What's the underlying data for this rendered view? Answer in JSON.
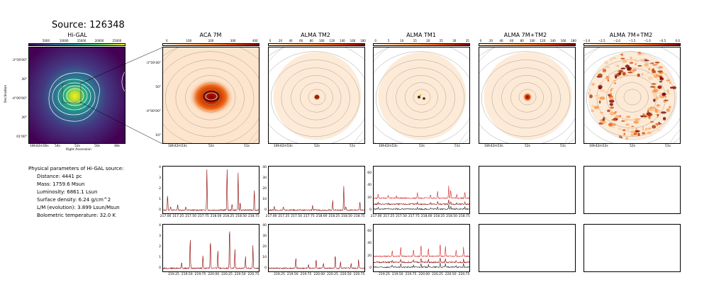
{
  "title": "Source: 126348",
  "panels": [
    {
      "id": "higal",
      "title": "Hi-GAL",
      "cbar_ticks": [
        "5000",
        "10000",
        "15000",
        "20000",
        "25000"
      ],
      "cbar_colors": [
        "#440154",
        "#3b528b",
        "#21908d",
        "#5dc963",
        "#fde725"
      ]
    },
    {
      "id": "aca7m",
      "title": "ACA 7M",
      "cbar_ticks": [
        "0",
        "100",
        "200",
        "300",
        "400"
      ],
      "cbar_colors": [
        "#fff5eb",
        "#fdbe85",
        "#fd8d3c",
        "#d94701",
        "#7f0000"
      ]
    },
    {
      "id": "tm2",
      "title": "ALMA TM2",
      "cbar_ticks": [
        "0",
        "20",
        "40",
        "60",
        "80",
        "100",
        "120",
        "140",
        "160",
        "180"
      ],
      "cbar_colors": [
        "#fff5eb",
        "#fdbe85",
        "#fd8d3c",
        "#d94701",
        "#7f0000"
      ]
    },
    {
      "id": "tm1",
      "title": "ALMA TM1",
      "cbar_ticks": [
        "0",
        "5",
        "10",
        "15",
        "20",
        "25",
        "30",
        "35"
      ],
      "cbar_colors": [
        "#fff5eb",
        "#fdbe85",
        "#fd8d3c",
        "#d94701",
        "#7f0000"
      ]
    },
    {
      "id": "7mtm2",
      "title": "ALMA 7M+TM2",
      "cbar_ticks": [
        "0",
        "20",
        "40",
        "60",
        "80",
        "100",
        "120",
        "140",
        "160",
        "180"
      ],
      "cbar_colors": [
        "#fff5eb",
        "#fdbe85",
        "#fd8d3c",
        "#d94701",
        "#7f0000"
      ]
    },
    {
      "id": "7mtm2b",
      "title": "ALMA 7M+TM2",
      "cbar_ticks": [
        "−3.0",
        "−2.5",
        "−2.0",
        "−1.5",
        "−1.0",
        "−0.5",
        "0.0"
      ],
      "cbar_colors": [
        "#fff5eb",
        "#fdbe85",
        "#fd8d3c",
        "#d94701",
        "#7f0000"
      ]
    }
  ],
  "higal_axes": {
    "ylabel": "Declination",
    "xlabel": "Right Ascension",
    "yticks": [
      "-3°59'00\"",
      "30\"",
      "-4°00'00\"",
      "30\"",
      "01'00\""
    ],
    "xticks": [
      "18h42m56s",
      "54s",
      "52s",
      "50s",
      "48s"
    ]
  },
  "zoom_axes": {
    "yticks": [
      "-3°59'40\"",
      "50\"",
      "-4°00'00\"",
      "10\""
    ],
    "xticks": [
      "18h42m53s",
      "52s",
      "51s"
    ]
  },
  "params": {
    "heading": "Physical parameters of Hi-GAL source:",
    "lines": [
      "Distance: 4441 pc",
      "Mass: 1759.6 Msun",
      "Luminosity: 6861.1 Lsun",
      "Surface density: 6.24 g/cm^2",
      "L/M (evolution): 3.899 Lsun/Msun",
      "Bolometric temperature: 32.0 K"
    ]
  },
  "chart_data": [
    {
      "type": "line",
      "panel": "spectrum-aca-band1",
      "x_ticks": [
        "217.00",
        "217.25",
        "217.50",
        "217.75",
        "218.00",
        "218.25",
        "218.50",
        "218.75"
      ],
      "y_ticks": [
        "0",
        "1",
        "2",
        "3",
        "4"
      ],
      "xlim": [
        216.95,
        218.85
      ],
      "ylim": [
        -0.3,
        4.1
      ],
      "peaks": [
        [
          217.04,
          1.5
        ],
        [
          217.1,
          0.4
        ],
        [
          217.24,
          0.5
        ],
        [
          217.4,
          0.3
        ],
        [
          217.82,
          3.9
        ],
        [
          218.22,
          4.0
        ],
        [
          218.32,
          0.6
        ],
        [
          218.44,
          3.5
        ],
        [
          218.48,
          0.8
        ],
        [
          218.76,
          2.0
        ]
      ]
    },
    {
      "type": "line",
      "panel": "spectrum-tm2-band1",
      "x_ticks": [
        "217.00",
        "217.25",
        "217.50",
        "217.75",
        "218.00",
        "218.25",
        "218.50",
        "218.75"
      ],
      "y_ticks": [
        "0",
        "10",
        "20",
        "30",
        "40"
      ],
      "xlim": [
        216.95,
        218.85
      ],
      "ylim": [
        -3,
        41
      ],
      "peaks": [
        [
          217.06,
          4
        ],
        [
          217.24,
          3
        ],
        [
          217.82,
          5
        ],
        [
          218.22,
          9
        ],
        [
          218.44,
          23
        ],
        [
          218.48,
          4
        ],
        [
          218.76,
          8
        ]
      ]
    },
    {
      "type": "line",
      "panel": "spectrum-tm1-band1",
      "x_ticks": [
        "217.00",
        "217.25",
        "217.50",
        "217.75",
        "218.00",
        "218.25",
        "218.50",
        "218.75"
      ],
      "y_ticks": [
        "0",
        "20",
        "40",
        "60"
      ],
      "xlim": [
        216.95,
        218.85
      ],
      "ylim": [
        -5,
        72
      ],
      "baselines": [
        20,
        10,
        2
      ],
      "peaks": [
        [
          217.04,
          28
        ],
        [
          217.24,
          25
        ],
        [
          217.4,
          24
        ],
        [
          217.82,
          30
        ],
        [
          218.08,
          26
        ],
        [
          218.22,
          32
        ],
        [
          218.44,
          40
        ],
        [
          218.48,
          34
        ],
        [
          218.6,
          26
        ],
        [
          218.76,
          30
        ]
      ]
    },
    {
      "type": "line",
      "panel": "spectrum-aca-band2",
      "x_ticks": [
        "219.25",
        "219.50",
        "219.75",
        "220.00",
        "220.25",
        "220.50",
        "220.75"
      ],
      "y_ticks": [
        "0",
        "1",
        "2",
        "3",
        "4"
      ],
      "xlim": [
        219.05,
        220.85
      ],
      "ylim": [
        -0.3,
        4.1
      ],
      "peaks": [
        [
          219.4,
          0.6
        ],
        [
          219.56,
          2.9
        ],
        [
          219.8,
          1.3
        ],
        [
          219.94,
          2.8
        ],
        [
          220.08,
          1.7
        ],
        [
          220.3,
          4.1
        ],
        [
          220.4,
          1.8
        ],
        [
          220.6,
          1.1
        ],
        [
          220.74,
          2.2
        ]
      ]
    },
    {
      "type": "line",
      "panel": "spectrum-tm2-band2",
      "x_ticks": [
        "219.25",
        "219.50",
        "219.75",
        "220.00",
        "220.25",
        "220.50",
        "220.75"
      ],
      "y_ticks": [
        "0",
        "10",
        "20",
        "30",
        "40"
      ],
      "xlim": [
        219.05,
        220.85
      ],
      "ylim": [
        -3,
        41
      ],
      "peaks": [
        [
          219.56,
          10
        ],
        [
          219.8,
          4
        ],
        [
          219.94,
          9
        ],
        [
          220.08,
          5
        ],
        [
          220.3,
          13
        ],
        [
          220.4,
          6
        ],
        [
          220.6,
          5
        ],
        [
          220.74,
          8
        ]
      ]
    },
    {
      "type": "line",
      "panel": "spectrum-tm1-band2",
      "x_ticks": [
        "219.25",
        "219.50",
        "219.75",
        "220.00",
        "220.25",
        "220.50",
        "220.75"
      ],
      "y_ticks": [
        "0",
        "20",
        "40",
        "60"
      ],
      "xlim": [
        219.05,
        220.85
      ],
      "ylim": [
        -5,
        72
      ],
      "baselines": [
        20,
        10,
        2
      ],
      "peaks": [
        [
          219.4,
          30
        ],
        [
          219.56,
          36
        ],
        [
          219.8,
          32
        ],
        [
          219.94,
          40
        ],
        [
          220.08,
          34
        ],
        [
          220.3,
          42
        ],
        [
          220.4,
          36
        ],
        [
          220.6,
          30
        ],
        [
          220.74,
          36
        ]
      ]
    }
  ]
}
